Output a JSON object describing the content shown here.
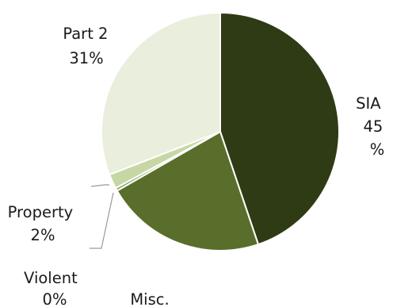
{
  "chart_data": {
    "type": "pie",
    "title": "",
    "start": "top",
    "direction": "clockwise",
    "legend": "none",
    "slices": [
      {
        "label": "SIA",
        "value": 45,
        "value_text": "45%",
        "color": "#2e3b14",
        "label_lines": [
          "SIA",
          "45",
          "%"
        ]
      },
      {
        "label": "Misc.",
        "value": 22,
        "value_text": "",
        "color": "#5a6e2c",
        "label_lines": [
          "Misc."
        ]
      },
      {
        "label": "Violent",
        "value": 0.4,
        "value_text": "0%",
        "color": "#8fa45c",
        "label_lines": [
          "Violent",
          "0%"
        ]
      },
      {
        "label": "Property",
        "value": 2,
        "value_text": "2%",
        "color": "#c6d7a4",
        "label_lines": [
          "Property",
          "2%"
        ]
      },
      {
        "label": "Part 2",
        "value": 31,
        "value_text": "31%",
        "color": "#e9eedd",
        "label_lines": [
          "Part 2",
          "31%"
        ]
      }
    ]
  }
}
